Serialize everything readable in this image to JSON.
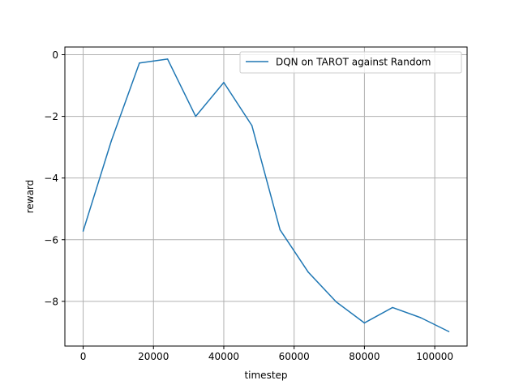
{
  "chart_data": {
    "type": "line",
    "title": "",
    "xlabel": "timestep",
    "ylabel": "reward",
    "xlim": [
      -5200,
      109200
    ],
    "ylim": [
      -9.45,
      0.25
    ],
    "xticks": [
      0,
      20000,
      40000,
      60000,
      80000,
      100000
    ],
    "yticks": [
      0,
      -2,
      -4,
      -6,
      -8
    ],
    "xtick_labels": [
      "0",
      "20000",
      "40000",
      "60000",
      "80000",
      "100000"
    ],
    "ytick_labels": [
      "0",
      "−2",
      "−4",
      "−6",
      "−8"
    ],
    "grid": true,
    "legend_position": "upper right",
    "series": [
      {
        "name": "DQN on TAROT against Random",
        "color": "#1f77b4",
        "x": [
          0,
          8000,
          16000,
          24000,
          32000,
          40000,
          48000,
          56000,
          64000,
          72000,
          80000,
          88000,
          96000,
          104000
        ],
        "y": [
          -5.72,
          -2.8,
          -0.27,
          -0.14,
          -2.0,
          -0.9,
          -2.3,
          -5.68,
          -7.05,
          -8.02,
          -8.7,
          -8.2,
          -8.53,
          -8.98
        ]
      }
    ]
  }
}
